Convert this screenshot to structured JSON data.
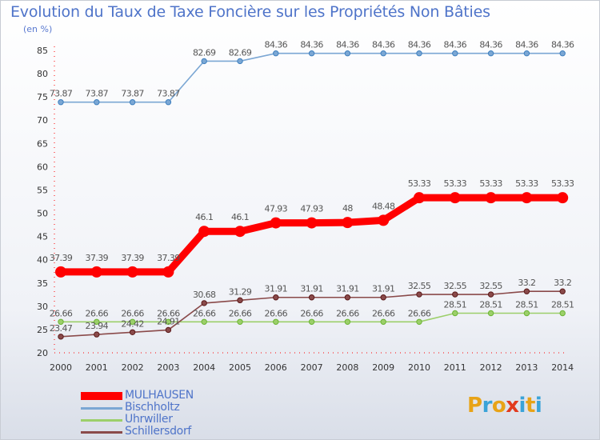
{
  "title": "Evolution du Taux de Taxe Foncière sur les Propriétés Non Bâties",
  "unit_label": "(en %)",
  "logo": {
    "text": "Proxiti",
    "colors": [
      "#e8a317",
      "#3aa3d8",
      "#e8a317",
      "#e23a1e",
      "#3aa3d8",
      "#e8a317",
      "#3aa3d8"
    ]
  },
  "chart_data": {
    "type": "line",
    "title": "Evolution du Taux de Taxe Foncière sur les Propriétés Non Bâties",
    "ylabel": "(en %)",
    "xlabel": "",
    "x": [
      "2000",
      "2001",
      "2002",
      "2003",
      "2004",
      "2005",
      "2006",
      "2007",
      "2008",
      "2009",
      "2010",
      "2011",
      "2012",
      "2013",
      "2014"
    ],
    "ylim": [
      20,
      85
    ],
    "yticks": [
      20,
      25,
      30,
      35,
      40,
      45,
      50,
      55,
      60,
      65,
      70,
      75,
      80,
      85
    ],
    "grid": false,
    "legend_position": "bottom-left",
    "series": [
      {
        "name": "MULHAUSEN",
        "color": "#ff0000",
        "thick": true,
        "values": [
          37.39,
          37.39,
          37.39,
          37.39,
          46.1,
          46.1,
          47.93,
          47.93,
          48,
          48.48,
          53.33,
          53.33,
          53.33,
          53.33,
          53.33
        ],
        "labels": [
          "37.39",
          "37.39",
          "37.39",
          "37.39",
          "46.1",
          "46.1",
          "47.93",
          "47.93",
          "48",
          "48.48",
          "53.33",
          "53.33",
          "53.33",
          "53.33",
          "53.33"
        ]
      },
      {
        "name": "Bischholtz",
        "color": "#7ba7d4",
        "marker": "#3d7fbf",
        "values": [
          73.87,
          73.87,
          73.87,
          73.87,
          82.69,
          82.69,
          84.36,
          84.36,
          84.36,
          84.36,
          84.36,
          84.36,
          84.36,
          84.36,
          84.36
        ],
        "labels": [
          "73.87",
          "73.87",
          "73.87",
          "73.87",
          "82.69",
          "82.69",
          "84.36",
          "84.36",
          "84.36",
          "84.36",
          "84.36",
          "84.36",
          "84.36",
          "84.36",
          "84.36"
        ]
      },
      {
        "name": "Uhrwiller",
        "color": "#9ccf6a",
        "marker": "#6ab534",
        "values": [
          26.66,
          26.66,
          26.66,
          26.66,
          26.66,
          26.66,
          26.66,
          26.66,
          26.66,
          26.66,
          26.66,
          28.51,
          28.51,
          28.51,
          28.51
        ],
        "labels": [
          "26.66",
          "26.66",
          "26.66",
          "26.66",
          "26.66",
          "26.66",
          "26.66",
          "26.66",
          "26.66",
          "26.66",
          "26.66",
          "28.51",
          "28.51",
          "28.51",
          "28.51"
        ]
      },
      {
        "name": "Schillersdorf",
        "color": "#8a4a4a",
        "marker": "#5a1a1a",
        "values": [
          23.47,
          23.94,
          24.42,
          24.91,
          30.68,
          31.29,
          31.91,
          31.91,
          31.91,
          31.91,
          32.55,
          32.55,
          32.55,
          33.2,
          33.2
        ],
        "labels": [
          "23.47",
          "23.94",
          "24.42",
          "24.91",
          "30.68",
          "31.29",
          "31.91",
          "31.91",
          "31.91",
          "31.91",
          "32.55",
          "32.55",
          "32.55",
          "33.2",
          "33.2"
        ]
      }
    ]
  }
}
